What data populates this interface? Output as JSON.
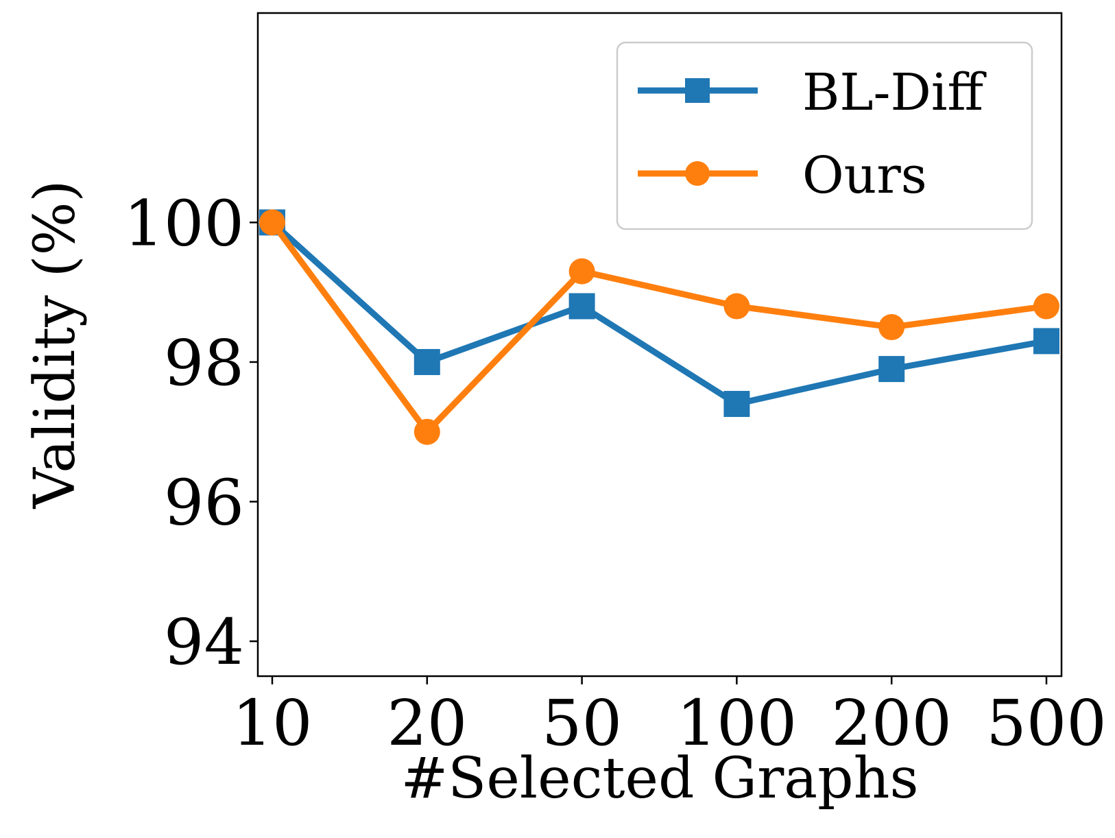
{
  "chart_data": {
    "type": "line",
    "categories": [
      "10",
      "20",
      "50",
      "100",
      "200",
      "500"
    ],
    "xlabel": "#Selected Graphs",
    "ylabel": "Validity (%)",
    "ylim": [
      93.5,
      103.0
    ],
    "yticks": [
      "94",
      "96",
      "98",
      "100"
    ],
    "grid": false,
    "legend_position": "top-right",
    "series": [
      {
        "name": "BL-Diff",
        "color": "#1f77b4",
        "marker": "square",
        "values": [
          100.0,
          98.0,
          98.8,
          97.4,
          97.9,
          98.3
        ]
      },
      {
        "name": "Ours",
        "color": "#ff7f0e",
        "marker": "circle",
        "values": [
          100.0,
          97.0,
          99.3,
          98.8,
          98.5,
          98.8
        ]
      }
    ]
  }
}
